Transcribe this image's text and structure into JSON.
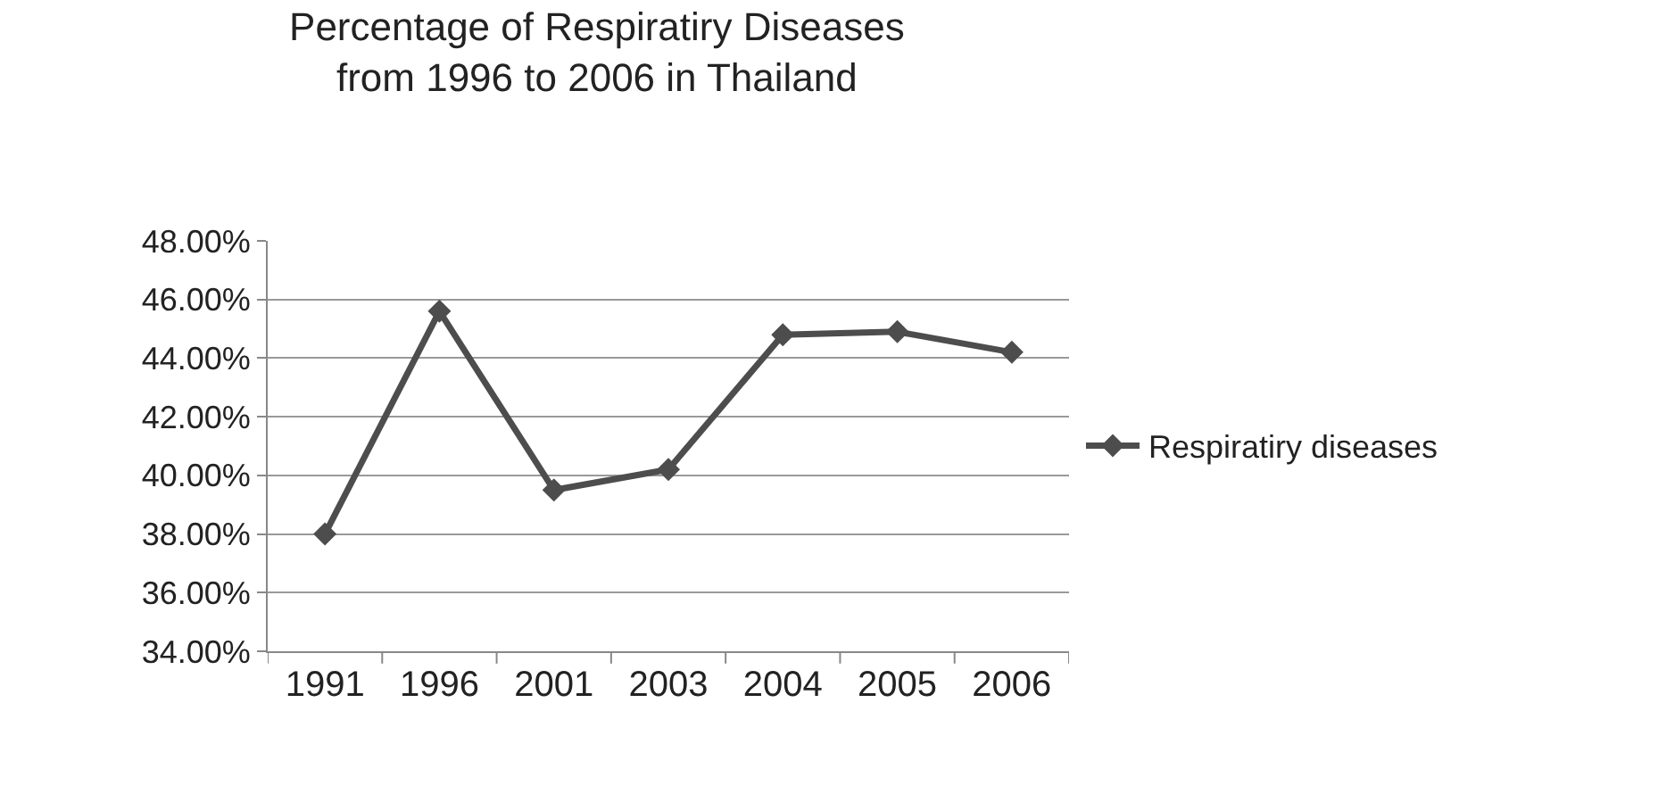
{
  "chart_data": {
    "type": "line",
    "title": "Percentage of Respiratiry Diseases\nfrom 1996 to 2006 in Thailand",
    "categories": [
      "1991",
      "1996",
      "2001",
      "2003",
      "2004",
      "2005",
      "2006"
    ],
    "series": [
      {
        "name": "Respiratiry diseases",
        "color": "#4d4d4d",
        "values": [
          38.0,
          45.6,
          39.5,
          40.2,
          44.8,
          44.9,
          44.2
        ]
      }
    ],
    "ylim": [
      34,
      48
    ],
    "yticks": [
      {
        "value": 34,
        "label": "34.00%"
      },
      {
        "value": 36,
        "label": "36.00%"
      },
      {
        "value": 38,
        "label": "38.00%"
      },
      {
        "value": 40,
        "label": "40.00%"
      },
      {
        "value": 42,
        "label": "42.00%"
      },
      {
        "value": 44,
        "label": "44.00%"
      },
      {
        "value": 46,
        "label": "46.00%"
      },
      {
        "value": 48,
        "label": "48.00%"
      }
    ],
    "grid": "y",
    "legend": "right",
    "marker": "diamond",
    "line_style": "solid"
  }
}
